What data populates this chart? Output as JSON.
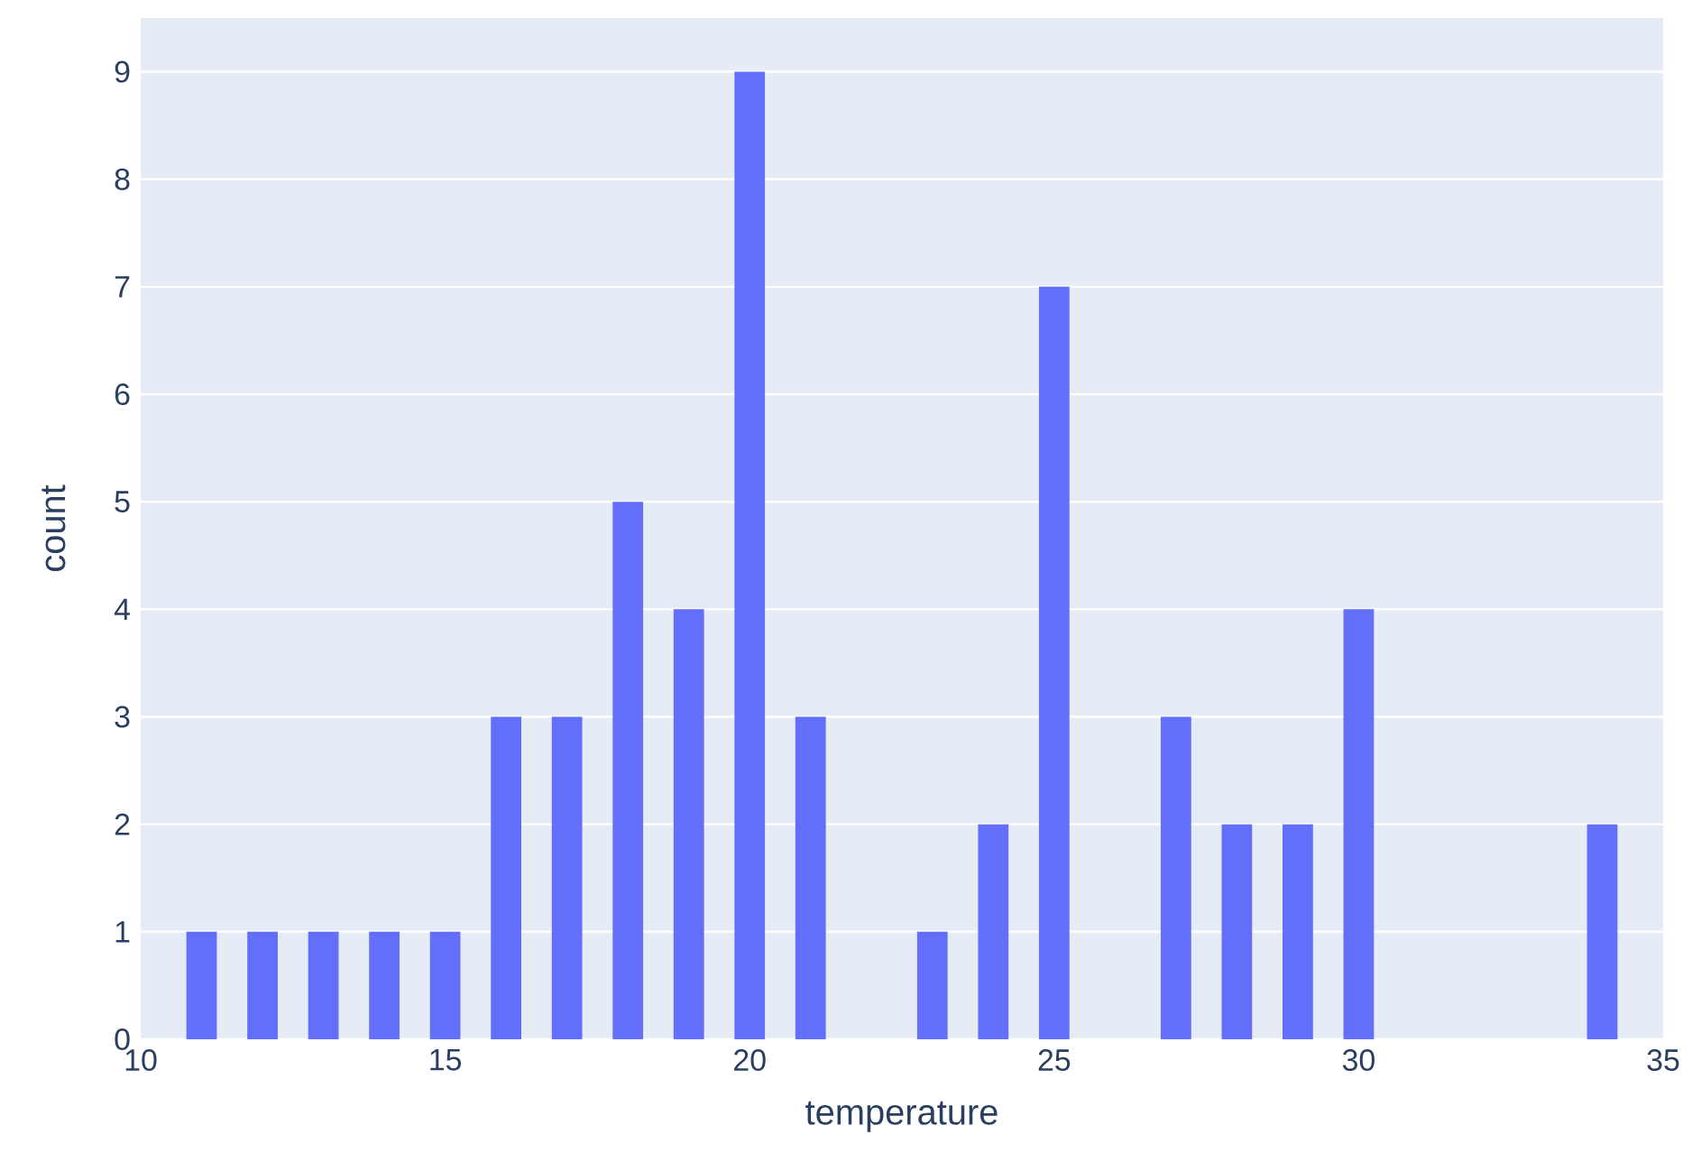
{
  "chart_data": {
    "type": "histogram",
    "xlabel": "temperature",
    "ylabel": "count",
    "color": "#636efa",
    "bins": [
      10.75,
      11.25,
      11.75,
      12.25,
      12.75,
      13.25,
      13.75,
      14.25,
      14.75,
      15.25,
      15.75,
      16.25,
      16.75,
      17.25,
      17.75,
      18.25,
      18.75,
      19.25,
      19.75,
      20.25,
      20.75,
      21.25,
      21.75,
      22.25,
      22.75,
      23.25,
      23.75,
      24.25,
      24.75,
      25.25,
      25.75,
      26.25,
      26.75,
      27.25,
      27.75,
      28.25,
      28.75,
      29.25,
      29.75,
      30.25,
      30.75,
      31.25,
      31.75,
      32.25,
      32.75,
      33.25,
      33.75,
      34.25
    ],
    "values": [
      1,
      0,
      1,
      0,
      1,
      0,
      1,
      0,
      1,
      0,
      3,
      0,
      3,
      0,
      5,
      0,
      4,
      0,
      9,
      0,
      3,
      0,
      0,
      0,
      1,
      0,
      2,
      0,
      7,
      0,
      0,
      0,
      3,
      0,
      2,
      0,
      2,
      0,
      4,
      0,
      0,
      0,
      0,
      0,
      0,
      0,
      2
    ],
    "xlim": [
      10,
      35
    ],
    "xticks": [
      10,
      15,
      20,
      25,
      30,
      35
    ],
    "ylim": [
      0,
      9.5
    ],
    "yticks": [
      0,
      1,
      2,
      3,
      4,
      5,
      6,
      7,
      8,
      9
    ],
    "grid": "y"
  }
}
